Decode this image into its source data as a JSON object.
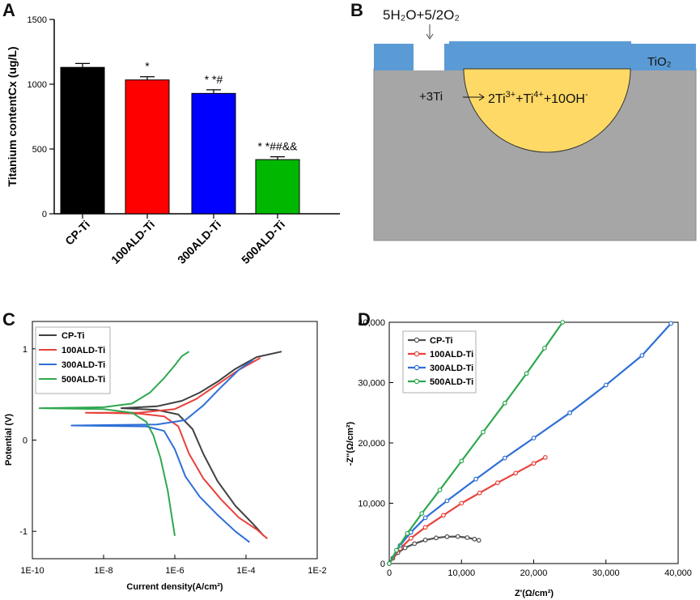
{
  "panels": {
    "a": "A",
    "b": "B",
    "c": "C",
    "d": "D"
  },
  "chart_data": [
    {
      "type": "bar",
      "panel": "A",
      "ylabel": "Titanium contentCx (ug/L)",
      "ylim": [
        0,
        1500
      ],
      "yticks": [
        0,
        500,
        1000,
        1500
      ],
      "categories": [
        "CP-Ti",
        "100ALD-Ti",
        "300ALD-Ti",
        "500ALD-Ti"
      ],
      "values": [
        1130,
        1033,
        929,
        418
      ],
      "errors": [
        30,
        25,
        28,
        22
      ],
      "colors": [
        "#000000",
        "#ff0000",
        "#0000ff",
        "#00b800"
      ],
      "annotations": [
        "",
        "*",
        "* *#",
        "* *##&&"
      ]
    },
    {
      "type": "diagram",
      "panel": "B",
      "top_reaction": "5H₂O+5/2O₂",
      "layer_label": "TiO₂",
      "left_reactant": "+3Ti",
      "products_prefix": "2Ti",
      "products_sup1": "3+",
      "products_mid": "+Ti",
      "products_sup2": "4+",
      "products_tail": "+10OH",
      "products_sup3": "-",
      "colors": {
        "layer": "#5b9bd5",
        "substrate": "#a6a6a6",
        "pit": "#ffd966"
      }
    },
    {
      "type": "line",
      "panel": "C",
      "xlabel": "Current density(A/cm²)",
      "ylabel": "Potential (V)",
      "xscale": "log",
      "xlim_exp": [
        -10,
        -2
      ],
      "xticks": [
        "1E-10",
        "1E-8",
        "1E-6",
        "1E-4",
        "1E-2"
      ],
      "ylim": [
        -1.3,
        1.3
      ],
      "yticks": [
        -1,
        0,
        1
      ],
      "legend": [
        "CP-Ti",
        "100ALD-Ti",
        "300ALD-Ti",
        "500ALD-Ti"
      ],
      "series": [
        {
          "name": "CP-Ti",
          "color": "#404040",
          "anodic": [
            [
              -7.5,
              0.35
            ],
            [
              -6.5,
              0.37
            ],
            [
              -5.8,
              0.43
            ],
            [
              -5.3,
              0.52
            ],
            [
              -4.8,
              0.64
            ],
            [
              -4.3,
              0.78
            ],
            [
              -3.7,
              0.91
            ],
            [
              -3.0,
              0.97
            ]
          ],
          "cathodic": [
            [
              -7.5,
              0.35
            ],
            [
              -6.5,
              0.33
            ],
            [
              -5.9,
              0.28
            ],
            [
              -5.5,
              0.12
            ],
            [
              -5.2,
              -0.15
            ],
            [
              -4.8,
              -0.45
            ],
            [
              -4.3,
              -0.72
            ],
            [
              -3.8,
              -0.92
            ],
            [
              -3.5,
              -1.05
            ]
          ]
        },
        {
          "name": "100ALD-Ti",
          "color": "#e8423c",
          "anodic": [
            [
              -8.5,
              0.3
            ],
            [
              -7.0,
              0.3
            ],
            [
              -6.0,
              0.34
            ],
            [
              -5.4,
              0.45
            ],
            [
              -4.8,
              0.61
            ],
            [
              -4.2,
              0.77
            ],
            [
              -3.6,
              0.9
            ]
          ],
          "cathodic": [
            [
              -8.5,
              0.3
            ],
            [
              -7.0,
              0.29
            ],
            [
              -6.3,
              0.26
            ],
            [
              -5.9,
              0.15
            ],
            [
              -5.6,
              -0.15
            ],
            [
              -5.2,
              -0.42
            ],
            [
              -4.7,
              -0.65
            ],
            [
              -4.2,
              -0.85
            ],
            [
              -3.7,
              -0.98
            ],
            [
              -3.4,
              -1.08
            ]
          ]
        },
        {
          "name": "300ALD-Ti",
          "color": "#2f6fd6",
          "anodic": [
            [
              -8.9,
              0.16
            ],
            [
              -6.5,
              0.17
            ],
            [
              -5.7,
              0.22
            ],
            [
              -5.2,
              0.38
            ],
            [
              -4.7,
              0.58
            ],
            [
              -4.2,
              0.77
            ],
            [
              -3.8,
              0.88
            ]
          ],
          "cathodic": [
            [
              -8.9,
              0.16
            ],
            [
              -6.8,
              0.15
            ],
            [
              -6.3,
              0.1
            ],
            [
              -6.0,
              -0.1
            ],
            [
              -5.7,
              -0.4
            ],
            [
              -5.3,
              -0.62
            ],
            [
              -4.8,
              -0.82
            ],
            [
              -4.3,
              -1.0
            ],
            [
              -3.9,
              -1.12
            ]
          ]
        },
        {
          "name": "500ALD-Ti",
          "color": "#2fa84f",
          "anodic": [
            [
              -9.8,
              0.35
            ],
            [
              -8.0,
              0.36
            ],
            [
              -7.2,
              0.4
            ],
            [
              -6.7,
              0.52
            ],
            [
              -6.3,
              0.68
            ],
            [
              -6.0,
              0.82
            ],
            [
              -5.8,
              0.92
            ],
            [
              -5.6,
              0.97
            ]
          ],
          "cathodic": [
            [
              -9.8,
              0.35
            ],
            [
              -8.0,
              0.34
            ],
            [
              -7.2,
              0.3
            ],
            [
              -6.8,
              0.2
            ],
            [
              -6.6,
              0.05
            ],
            [
              -6.4,
              -0.2
            ],
            [
              -6.2,
              -0.55
            ],
            [
              -6.1,
              -0.8
            ],
            [
              -6.0,
              -1.05
            ]
          ]
        }
      ]
    },
    {
      "type": "scatter",
      "panel": "D",
      "xlabel": "Z'(Ω/cm²)",
      "ylabel": "-Z''(Ω/cm²)",
      "xlim": [
        0,
        40000
      ],
      "ylim": [
        0,
        40000
      ],
      "xticks": [
        "0",
        "10,000",
        "20,000",
        "30,000",
        "40,000"
      ],
      "yticks": [
        "0",
        "10,000",
        "20,000",
        "30,000",
        "40,000"
      ],
      "legend": [
        "CP-Ti",
        "100ALD-Ti",
        "300ALD-Ti",
        "500ALD-Ti"
      ],
      "series": [
        {
          "name": "CP-Ti",
          "color": "#505050",
          "points": [
            [
              0,
              0
            ],
            [
              500,
              900
            ],
            [
              1200,
              1800
            ],
            [
              2200,
              2600
            ],
            [
              3500,
              3300
            ],
            [
              5000,
              3900
            ],
            [
              6500,
              4250
            ],
            [
              8000,
              4450
            ],
            [
              9500,
              4480
            ],
            [
              10800,
              4300
            ],
            [
              11800,
              4050
            ],
            [
              12400,
              3850
            ]
          ]
        },
        {
          "name": "100ALD-Ti",
          "color": "#e8423c",
          "points": [
            [
              0,
              0
            ],
            [
              1500,
              2500
            ],
            [
              3000,
              4200
            ],
            [
              5000,
              6000
            ],
            [
              7500,
              8000
            ],
            [
              10000,
              10000
            ],
            [
              12500,
              11700
            ],
            [
              15000,
              13400
            ],
            [
              17500,
              15000
            ],
            [
              20000,
              16600
            ],
            [
              21600,
              17600
            ]
          ]
        },
        {
          "name": "300ALD-Ti",
          "color": "#2f6fd6",
          "points": [
            [
              0,
              0
            ],
            [
              1500,
              3000
            ],
            [
              3000,
              5200
            ],
            [
              5000,
              7600
            ],
            [
              8000,
              10400
            ],
            [
              12000,
              14000
            ],
            [
              16000,
              17500
            ],
            [
              20000,
              20800
            ],
            [
              25000,
              25000
            ],
            [
              30000,
              29600
            ],
            [
              35000,
              34500
            ],
            [
              39000,
              39800
            ]
          ]
        },
        {
          "name": "500ALD-Ti",
          "color": "#2fa84f",
          "points": [
            [
              0,
              0
            ],
            [
              1000,
              2200
            ],
            [
              2500,
              5000
            ],
            [
              4500,
              8300
            ],
            [
              7000,
              12200
            ],
            [
              10000,
              17000
            ],
            [
              13000,
              21800
            ],
            [
              16000,
              26600
            ],
            [
              19000,
              31500
            ],
            [
              21500,
              35700
            ],
            [
              24000,
              40000
            ]
          ]
        }
      ]
    }
  ]
}
